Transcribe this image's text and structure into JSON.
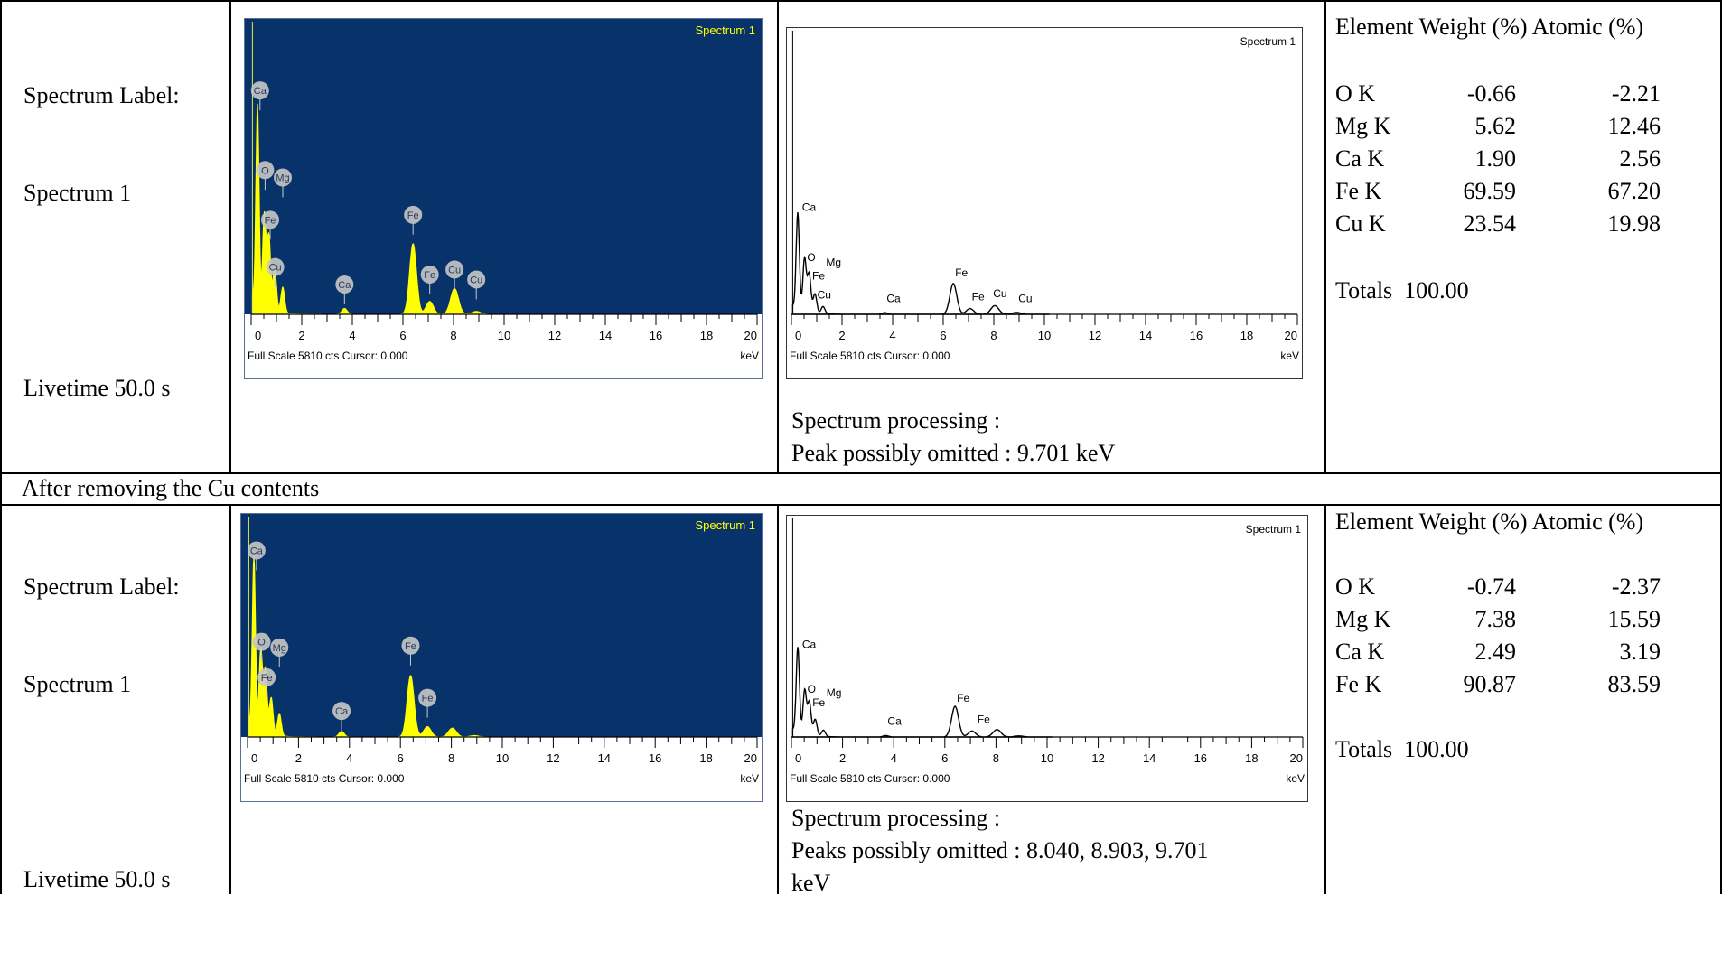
{
  "section_label": "After removing the Cu contents",
  "rows": [
    {
      "left": {
        "label_line1": "Spectrum Label:",
        "label_line2": "Spectrum 1",
        "livetime": "Livetime 50.0 s"
      },
      "processing_title": "Spectrum processing :",
      "processing_detail": "Peak possibly omitted : 9.701 keV",
      "composition": {
        "header": "Element Weight (%) Atomic (%)",
        "elements": [
          {
            "element": "O K",
            "weight": "-0.66",
            "atomic": "-2.21"
          },
          {
            "element": "Mg K",
            "weight": "5.62",
            "atomic": "12.46"
          },
          {
            "element": "Ca K",
            "weight": "1.90",
            "atomic": "2.56"
          },
          {
            "element": "Fe K",
            "weight": "69.59",
            "atomic": "67.20"
          },
          {
            "element": "Cu K",
            "weight": "23.54",
            "atomic": "19.98"
          }
        ],
        "totals": "Totals  100.00"
      }
    },
    {
      "left": {
        "label_line1": "Spectrum Label:",
        "label_line2": "Spectrum 1",
        "livetime": "Livetime 50.0 s"
      },
      "processing_title": "Spectrum processing :",
      "processing_detail": "Peaks possibly omitted : 8.040, 8.903, 9.701",
      "processing_detail2": "keV",
      "composition": {
        "header": "Element Weight (%) Atomic (%)",
        "elements": [
          {
            "element": "O K",
            "weight": "-0.74",
            "atomic": "-2.37"
          },
          {
            "element": "Mg K",
            "weight": "7.38",
            "atomic": "15.59"
          },
          {
            "element": "Ca K",
            "weight": "2.49",
            "atomic": "3.19"
          },
          {
            "element": "Fe K",
            "weight": "90.87",
            "atomic": "83.59"
          }
        ],
        "totals": "Totals  100.00"
      }
    }
  ],
  "colors": {
    "spectrum_bg": "#08336a",
    "spectrum_fill": "#ffff00",
    "spectrum_title": "#ffff00",
    "badge": "#c8c8c8"
  },
  "chart_data": [
    {
      "type": "area",
      "style": "colored",
      "title": "Spectrum 1",
      "xlabel": "keV",
      "footer": "Full Scale 5810 cts Cursor: 0.000",
      "xlim": [
        0,
        20
      ],
      "ylim": [
        0,
        5810
      ],
      "x_ticks": [
        "0",
        "2",
        "4",
        "6",
        "8",
        "10",
        "12",
        "14",
        "16",
        "18",
        "20"
      ],
      "peaks": [
        {
          "x": 0.25,
          "y": 4000
        },
        {
          "x": 0.52,
          "y": 1900
        },
        {
          "x": 0.7,
          "y": 1500
        },
        {
          "x": 0.93,
          "y": 900
        },
        {
          "x": 1.25,
          "y": 520
        },
        {
          "x": 3.69,
          "y": 120
        },
        {
          "x": 6.4,
          "y": 1420
        },
        {
          "x": 7.06,
          "y": 260
        },
        {
          "x": 8.04,
          "y": 520
        },
        {
          "x": 8.9,
          "y": 60
        }
      ],
      "annotations": [
        {
          "text": "Ca",
          "x": 0.35,
          "y": 4500
        },
        {
          "text": "O",
          "x": 0.55,
          "y": 2900
        },
        {
          "text": "Mg",
          "x": 1.25,
          "y": 2750
        },
        {
          "text": "Fe",
          "x": 0.75,
          "y": 1900
        },
        {
          "text": "Cu",
          "x": 0.95,
          "y": 950
        },
        {
          "text": "Ca",
          "x": 3.69,
          "y": 600
        },
        {
          "text": "Fe",
          "x": 6.4,
          "y": 2000
        },
        {
          "text": "Fe",
          "x": 7.06,
          "y": 800
        },
        {
          "text": "Cu",
          "x": 8.04,
          "y": 900
        },
        {
          "text": "Cu",
          "x": 8.9,
          "y": 700
        }
      ]
    },
    {
      "type": "line",
      "style": "mono",
      "title": "Spectrum 1",
      "xlabel": "keV",
      "footer": "Full Scale 5810 cts Cursor: 0.000",
      "xlim": [
        0,
        20
      ],
      "ylim": [
        0,
        5810
      ],
      "x_ticks": [
        "0",
        "2",
        "4",
        "6",
        "8",
        "10",
        "12",
        "14",
        "16",
        "18",
        "20"
      ],
      "peaks": [
        {
          "x": 0.25,
          "y": 2000
        },
        {
          "x": 0.52,
          "y": 1100
        },
        {
          "x": 0.7,
          "y": 800
        },
        {
          "x": 0.93,
          "y": 400
        },
        {
          "x": 1.25,
          "y": 150
        },
        {
          "x": 3.69,
          "y": 35
        },
        {
          "x": 6.4,
          "y": 640
        },
        {
          "x": 7.06,
          "y": 120
        },
        {
          "x": 8.04,
          "y": 180
        },
        {
          "x": 8.9,
          "y": 40
        }
      ],
      "annotations": [
        {
          "text": "Ca",
          "x": 0.35,
          "y": 2150
        },
        {
          "text": "O",
          "x": 0.55,
          "y": 1110
        },
        {
          "text": "Mg",
          "x": 1.3,
          "y": 1000
        },
        {
          "text": "Fe",
          "x": 0.75,
          "y": 720
        },
        {
          "text": "Cu",
          "x": 0.95,
          "y": 330
        },
        {
          "text": "Ca",
          "x": 3.69,
          "y": 250
        },
        {
          "text": "Fe",
          "x": 6.4,
          "y": 790
        },
        {
          "text": "Fe",
          "x": 7.06,
          "y": 290
        },
        {
          "text": "Cu",
          "x": 7.9,
          "y": 360
        },
        {
          "text": "Cu",
          "x": 8.9,
          "y": 250
        }
      ]
    },
    {
      "type": "area",
      "style": "colored",
      "title": "Spectrum 1",
      "xlabel": "keV",
      "footer": "Full Scale 5810 cts Cursor: 0.000",
      "xlim": [
        0,
        20
      ],
      "ylim": [
        0,
        5810
      ],
      "x_ticks": [
        "0",
        "2",
        "4",
        "6",
        "8",
        "10",
        "12",
        "14",
        "16",
        "18",
        "20"
      ],
      "peaks": [
        {
          "x": 0.25,
          "y": 4600
        },
        {
          "x": 0.52,
          "y": 2200
        },
        {
          "x": 0.7,
          "y": 1700
        },
        {
          "x": 0.93,
          "y": 1000
        },
        {
          "x": 1.25,
          "y": 600
        },
        {
          "x": 3.69,
          "y": 150
        },
        {
          "x": 6.4,
          "y": 1650
        },
        {
          "x": 7.06,
          "y": 280
        },
        {
          "x": 8.04,
          "y": 240
        },
        {
          "x": 8.9,
          "y": 40
        }
      ],
      "annotations": [
        {
          "text": "Ca",
          "x": 0.35,
          "y": 5000
        },
        {
          "text": "O",
          "x": 0.55,
          "y": 2550
        },
        {
          "text": "Mg",
          "x": 1.25,
          "y": 2400
        },
        {
          "text": "Fe",
          "x": 0.75,
          "y": 1600
        },
        {
          "text": "Ca",
          "x": 3.69,
          "y": 700
        },
        {
          "text": "Fe",
          "x": 6.4,
          "y": 2450
        },
        {
          "text": "Fe",
          "x": 7.06,
          "y": 1050
        }
      ]
    },
    {
      "type": "line",
      "style": "mono",
      "title": "Spectrum 1",
      "xlabel": "keV",
      "footer": "Full Scale 5810 cts Cursor: 0.000",
      "xlim": [
        0,
        20
      ],
      "ylim": [
        0,
        5810
      ],
      "x_ticks": [
        "0",
        "2",
        "4",
        "6",
        "8",
        "10",
        "12",
        "14",
        "16",
        "18",
        "20"
      ],
      "peaks": [
        {
          "x": 0.25,
          "y": 2300
        },
        {
          "x": 0.52,
          "y": 1200
        },
        {
          "x": 0.7,
          "y": 900
        },
        {
          "x": 0.93,
          "y": 450
        },
        {
          "x": 1.25,
          "y": 170
        },
        {
          "x": 3.69,
          "y": 40
        },
        {
          "x": 6.4,
          "y": 830
        },
        {
          "x": 7.06,
          "y": 160
        },
        {
          "x": 8.04,
          "y": 200
        },
        {
          "x": 8.9,
          "y": 30
        }
      ],
      "annotations": [
        {
          "text": "Ca",
          "x": 0.35,
          "y": 2400
        },
        {
          "text": "O",
          "x": 0.55,
          "y": 1200
        },
        {
          "text": "Mg",
          "x": 1.3,
          "y": 1100
        },
        {
          "text": "Fe",
          "x": 0.75,
          "y": 830
        },
        {
          "text": "Ca",
          "x": 3.69,
          "y": 330
        },
        {
          "text": "Fe",
          "x": 6.4,
          "y": 950
        },
        {
          "text": "Fe",
          "x": 7.2,
          "y": 380
        }
      ]
    }
  ]
}
